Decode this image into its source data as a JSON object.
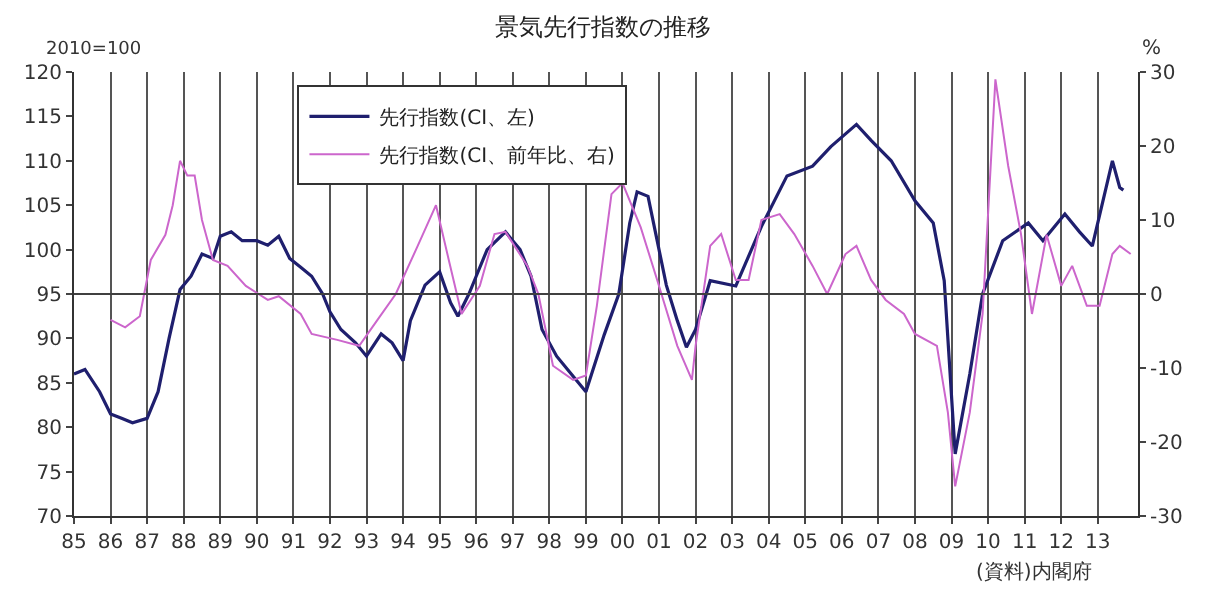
{
  "chart_data": {
    "type": "line",
    "title": "景気先行指数の推移",
    "ylabel": "2010=100",
    "y2label": "%",
    "annotations": [
      "(資料)内閣府"
    ],
    "xlim": [
      1985,
      2014.1
    ],
    "xticks": [
      {
        "value": 1985,
        "label": "85"
      },
      {
        "value": 1986,
        "label": "86"
      },
      {
        "value": 1987,
        "label": "87"
      },
      {
        "value": 1988,
        "label": "88"
      },
      {
        "value": 1989,
        "label": "89"
      },
      {
        "value": 1990,
        "label": "90"
      },
      {
        "value": 1991,
        "label": "91"
      },
      {
        "value": 1992,
        "label": "92"
      },
      {
        "value": 1993,
        "label": "93"
      },
      {
        "value": 1994,
        "label": "94"
      },
      {
        "value": 1995,
        "label": "95"
      },
      {
        "value": 1996,
        "label": "96"
      },
      {
        "value": 1997,
        "label": "97"
      },
      {
        "value": 1998,
        "label": "98"
      },
      {
        "value": 1999,
        "label": "99"
      },
      {
        "value": 2000,
        "label": "00"
      },
      {
        "value": 2001,
        "label": "01"
      },
      {
        "value": 2002,
        "label": "02"
      },
      {
        "value": 2003,
        "label": "03"
      },
      {
        "value": 2004,
        "label": "04"
      },
      {
        "value": 2005,
        "label": "05"
      },
      {
        "value": 2006,
        "label": "06"
      },
      {
        "value": 2007,
        "label": "07"
      },
      {
        "value": 2008,
        "label": "08"
      },
      {
        "value": 2009,
        "label": "09"
      },
      {
        "value": 2010,
        "label": "10"
      },
      {
        "value": 2011,
        "label": "11"
      },
      {
        "value": 2012,
        "label": "12"
      },
      {
        "value": 2013,
        "label": "13"
      }
    ],
    "ylim": [
      70,
      120
    ],
    "yticks": [
      70,
      75,
      80,
      85,
      90,
      95,
      100,
      105,
      110,
      115,
      120
    ],
    "y2lim": [
      -30,
      30
    ],
    "y2ticks": [
      -30,
      -20,
      -10,
      0,
      10,
      20,
      30
    ],
    "grid": "x",
    "legend": "top left",
    "marker": "none",
    "line_style": "solid",
    "ref_lines": [
      {
        "axis": "y",
        "value": 95,
        "color": "#404040"
      }
    ],
    "series": [
      {
        "name": "先行指数(CI、左)",
        "color": "#1f1f6e",
        "x": [
          1985.0,
          1985.3,
          1985.7,
          1986.0,
          1986.3,
          1986.6,
          1987.0,
          1987.3,
          1987.6,
          1987.9,
          1988.2,
          1988.5,
          1988.8,
          1989.0,
          1989.3,
          1989.6,
          1990.0,
          1990.3,
          1990.6,
          1990.9,
          1991.2,
          1991.5,
          1991.8,
          1992.0,
          1992.3,
          1992.7,
          1993.0,
          1993.4,
          1993.7,
          1994.0,
          1994.2,
          1994.6,
          1995.0,
          1995.3,
          1995.5,
          1995.8,
          1996.0,
          1996.3,
          1996.8,
          1997.0,
          1997.2,
          1997.5,
          1997.8,
          1998.2,
          1998.6,
          1999.0,
          1999.5,
          1999.9,
          2000.2,
          2000.4,
          2000.7,
          2000.9,
          2001.2,
          2001.5,
          2001.75,
          2002.0,
          2002.4,
          2003.1,
          2003.8,
          2004.5,
          2005.2,
          2005.7,
          2006.4,
          2006.8,
          2007.35,
          2008.0,
          2008.5,
          2008.8,
          2009.1,
          2009.5,
          2009.85,
          2010.4,
          2011.1,
          2011.5,
          2012.1,
          2012.5,
          2012.85,
          2013.4,
          2013.6,
          2013.7
        ],
        "values": [
          86,
          86.5,
          84,
          81.5,
          81,
          80.5,
          81,
          84,
          90,
          95.5,
          97,
          99.5,
          99,
          101.5,
          102,
          101,
          101,
          100.5,
          101.5,
          99,
          98,
          97,
          95,
          93,
          91,
          89.5,
          88,
          90.5,
          89.5,
          87.5,
          92,
          96,
          97.5,
          94,
          92.5,
          95,
          97,
          100,
          102,
          101,
          100,
          97,
          91,
          88,
          86,
          84,
          90.4,
          95,
          103,
          106.5,
          106,
          102,
          96,
          92,
          89,
          91,
          96.5,
          95.9,
          102.6,
          108.3,
          109.4,
          111.6,
          114.1,
          112.3,
          110,
          105.5,
          103,
          96.5,
          77,
          86,
          95,
          101,
          103,
          101,
          104,
          102,
          100.4,
          110,
          107,
          106.7
        ]
      },
      {
        "name": "先行指数(CI、前年比、右)",
        "color": "#cc66cc",
        "axis": "y2",
        "x": [
          1986.0,
          1986.4,
          1986.8,
          1987.1,
          1987.5,
          1987.7,
          1987.9,
          1988.1,
          1988.3,
          1988.5,
          1988.8,
          1989.2,
          1989.7,
          1990.3,
          1990.6,
          1991.2,
          1991.5,
          1992.2,
          1992.8,
          1993.3,
          1993.8,
          1994.4,
          1994.9,
          1995.25,
          1995.6,
          1996.1,
          1996.5,
          1996.8,
          1997.4,
          1997.7,
          1998.1,
          1998.65,
          1999.0,
          1999.3,
          1999.7,
          2000.0,
          2000.5,
          2000.95,
          2001.5,
          2001.9,
          2002.0,
          2002.4,
          2002.7,
          2003.1,
          2003.45,
          2003.8,
          2004.3,
          2004.7,
          2005.2,
          2005.6,
          2006.1,
          2006.4,
          2006.8,
          2007.2,
          2007.7,
          2008.0,
          2008.6,
          2008.9,
          2009.1,
          2009.5,
          2009.85,
          2010.2,
          2010.55,
          2010.9,
          2011.2,
          2011.6,
          2012.0,
          2012.3,
          2012.7,
          2013.05,
          2013.4,
          2013.6,
          2013.9
        ],
        "values": [
          -3.5,
          -4.5,
          -3,
          4.6,
          8,
          12,
          18,
          16,
          16,
          10,
          4.6,
          3.8,
          1.1,
          -0.8,
          -0.3,
          -2.7,
          -5.4,
          -6.2,
          -7,
          -3.5,
          0,
          6.5,
          12,
          4.6,
          -2.7,
          1.1,
          8.1,
          8.4,
          3.8,
          0,
          -9.7,
          -11.6,
          -11,
          -1.6,
          13.5,
          15,
          9,
          1.9,
          -7,
          -11.6,
          -7,
          6.5,
          8.1,
          1.9,
          1.9,
          10,
          10.8,
          8.1,
          3.8,
          0,
          5.4,
          6.5,
          1.9,
          -0.8,
          -2.7,
          -5.4,
          -7,
          -16,
          -26,
          -16,
          -2.7,
          29,
          17.3,
          8.1,
          -2.7,
          8,
          1.1,
          3.8,
          -1.6,
          -1.6,
          5.4,
          6.5,
          5.4
        ]
      }
    ]
  }
}
